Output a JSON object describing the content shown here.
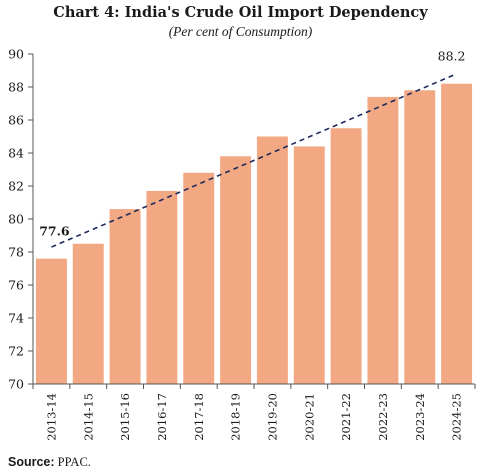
{
  "chart_data": {
    "type": "bar",
    "title": "Chart 4: India's Crude Oil Import Dependency",
    "subtitle": "(Per cent of Consumption)",
    "categories": [
      "2013-14",
      "2014-15",
      "2015-16",
      "2016-17",
      "2017-18",
      "2018-19",
      "2019-20",
      "2020-21",
      "2021-22",
      "2022-23",
      "2023-24",
      "2024-25"
    ],
    "values": [
      77.6,
      78.5,
      80.6,
      81.7,
      82.8,
      83.8,
      85.0,
      84.4,
      85.5,
      87.4,
      87.8,
      88.2
    ],
    "ylim": [
      70,
      90
    ],
    "yticks": [
      70,
      72,
      74,
      76,
      78,
      80,
      82,
      84,
      86,
      88,
      90
    ],
    "bar_color": "#f2a882",
    "trendline": {
      "style": "dashed",
      "color": "#1f2a5c",
      "start": 78.3,
      "end": 88.8
    },
    "annotations": [
      {
        "text": "77.6",
        "category": "2013-14",
        "value": 77.6,
        "bold": true
      },
      {
        "text": "88.2",
        "category": "2024-25",
        "value": 88.2,
        "bold": false
      }
    ],
    "grid": false
  },
  "source": {
    "label": "Source:",
    "text": "PPAC."
  }
}
